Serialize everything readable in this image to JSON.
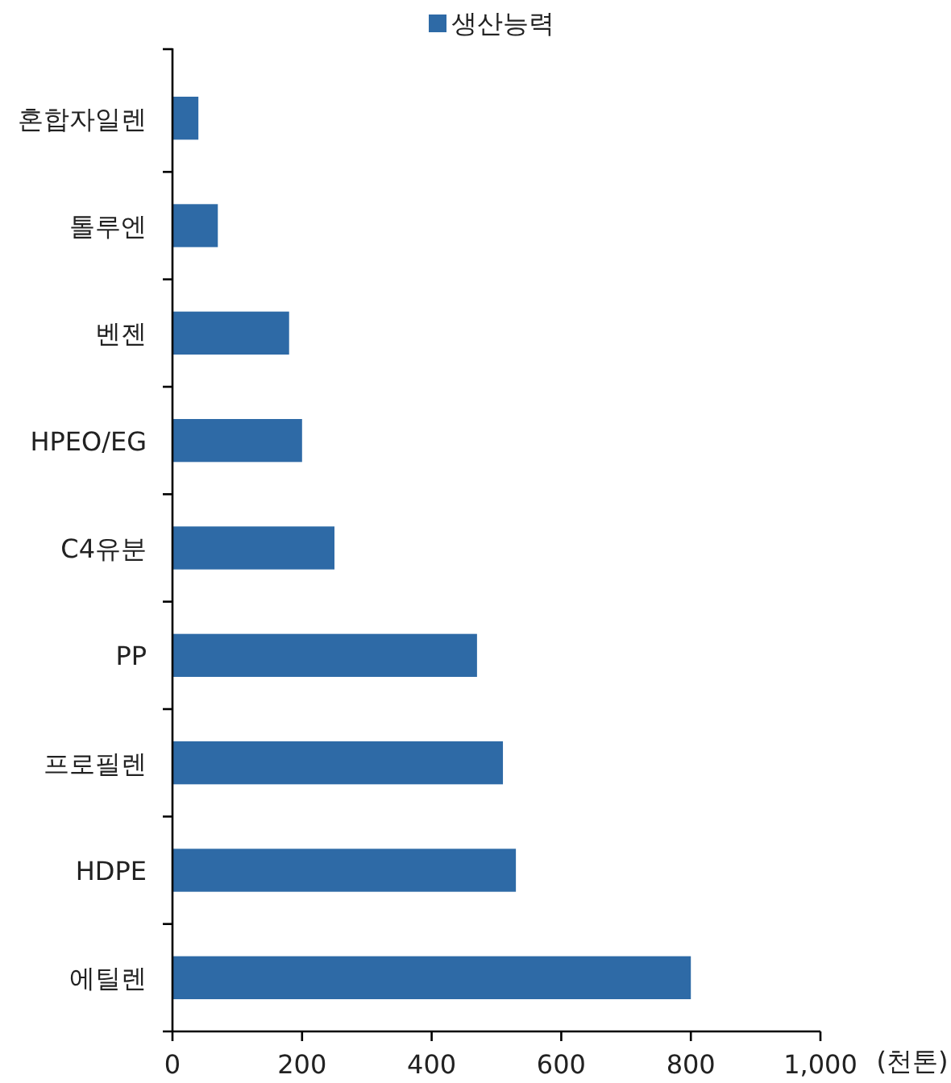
{
  "chart_data": {
    "type": "bar",
    "orientation": "horizontal",
    "categories": [
      "혼합자일렌",
      "톨루엔",
      "벤젠",
      "HPEO/EG",
      "C4유분",
      "PP",
      "프로필렌",
      "HDPE",
      "에틸렌"
    ],
    "series": [
      {
        "name": "생산능력",
        "color": "#2e6aa6",
        "values": [
          40,
          70,
          180,
          200,
          250,
          470,
          510,
          530,
          800
        ]
      }
    ],
    "xlim": [
      0,
      1000
    ],
    "xticks": [
      0,
      200,
      400,
      600,
      800,
      {
        "value": 1000,
        "label": "1,000"
      }
    ],
    "xlabel": "(천톤)",
    "legend": "top",
    "grid": false
  }
}
